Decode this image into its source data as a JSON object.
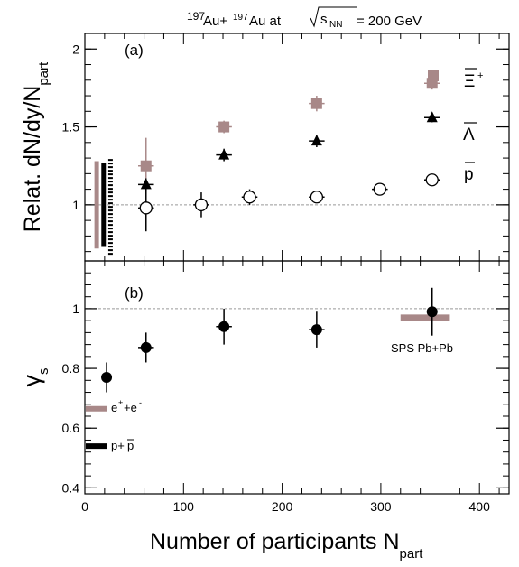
{
  "header": {
    "title_pre": "197",
    "title_mid": " Au+",
    "title_mid2": "197",
    "title_post": "Au at ",
    "sqrt_s": "s",
    "sqrt_sub": "NN",
    "title_end": " = 200 GeV"
  },
  "chart_data": [
    {
      "panel": "(a)",
      "type": "scatter",
      "ylabel_main": "Relat. dN/dy/N",
      "ylabel_sub": "part",
      "ylim": [
        0.64,
        2.1
      ],
      "xlim": [
        0,
        430
      ],
      "yticks": [
        1,
        1.5,
        2
      ],
      "ytick_labels": [
        "1",
        "1.5",
        "2"
      ],
      "reference_line": 1,
      "series": [
        {
          "name": "Ξ̄⁺",
          "label_main": "Ξ",
          "label_sup": "+",
          "color": "#a88888",
          "marker": "square",
          "points": [
            {
              "x": 62,
              "y": 1.25,
              "yerr": 0.18
            },
            {
              "x": 141,
              "y": 1.5,
              "yerr": 0.04
            },
            {
              "x": 235,
              "y": 1.65,
              "yerr": 0.05
            },
            {
              "x": 352,
              "y": 1.78,
              "yerr": 0.04
            }
          ]
        },
        {
          "name": "Λ̄",
          "label_main": "Λ",
          "color": "#000000",
          "marker": "triangle",
          "points": [
            {
              "x": 62,
              "y": 1.13,
              "yerr": 0.04
            },
            {
              "x": 141,
              "y": 1.32,
              "yerr": 0.04
            },
            {
              "x": 235,
              "y": 1.41,
              "yerr": 0.04
            },
            {
              "x": 352,
              "y": 1.56,
              "yerr": 0.03
            }
          ]
        },
        {
          "name": "p̄",
          "label_main": "p",
          "color": "#000000",
          "marker": "open-circle",
          "points": [
            {
              "x": 62,
              "y": 0.98,
              "yerr": 0.15
            },
            {
              "x": 118,
              "y": 1.0,
              "yerr": 0.08
            },
            {
              "x": 167,
              "y": 1.05,
              "yerr": 0.05
            },
            {
              "x": 235,
              "y": 1.05,
              "yerr": 0.03
            },
            {
              "x": 299,
              "y": 1.1,
              "yerr": 0.02
            },
            {
              "x": 352,
              "y": 1.16,
              "yerr": 0.02
            }
          ]
        }
      ],
      "systematic_bands": [
        {
          "x": 12,
          "ylow": 0.72,
          "yhigh": 1.28,
          "color": "#a88888",
          "style": "solid"
        },
        {
          "x": 19,
          "ylow": 0.73,
          "yhigh": 1.27,
          "color": "#000000",
          "style": "solid"
        },
        {
          "x": 26,
          "ylow": 0.68,
          "yhigh": 1.3,
          "color": "#000000",
          "style": "dashed"
        }
      ]
    },
    {
      "panel": "(b)",
      "type": "scatter",
      "ylabel_main": "γ",
      "ylabel_sub": "s",
      "ylim": [
        0.38,
        1.16
      ],
      "xlim": [
        0,
        430
      ],
      "yticks": [
        0.4,
        0.6,
        0.8,
        1
      ],
      "ytick_labels": [
        "0.4",
        "0.6",
        "0.8",
        "1"
      ],
      "reference_line": 1,
      "series": [
        {
          "name": "gamma_s",
          "color": "#000000",
          "marker": "filled-circle",
          "points": [
            {
              "x": 22,
              "y": 0.77,
              "yerr": 0.05,
              "xerr": 4
            },
            {
              "x": 62,
              "y": 0.87,
              "yerr": 0.05,
              "xerr": 8
            },
            {
              "x": 141,
              "y": 0.94,
              "yerr": 0.06,
              "xerr": 8
            },
            {
              "x": 235,
              "y": 0.93,
              "yerr": 0.06,
              "xerr": 8
            },
            {
              "x": 352,
              "y": 0.99,
              "yerr": 0.08,
              "xerr": 0
            }
          ]
        }
      ],
      "sps_band": {
        "xmin": 320,
        "xmax": 370,
        "y": 0.97,
        "color": "#a88888"
      },
      "sps_label": "SPS Pb+Pb",
      "ref_bands": [
        {
          "y": 0.665,
          "color": "#a88888",
          "label_pre": "e",
          "label_sup1": "+",
          "label_mid": "+e",
          "label_sup2": "-"
        },
        {
          "y": 0.54,
          "color": "#000000",
          "label_pre": "p+",
          "label_bar": "p"
        }
      ]
    }
  ],
  "xaxis": {
    "label_main": "Number of participants N",
    "label_sub": "part",
    "ticks": [
      0,
      100,
      200,
      300,
      400
    ],
    "tick_labels": [
      "0",
      "100",
      "200",
      "300",
      "400"
    ]
  }
}
